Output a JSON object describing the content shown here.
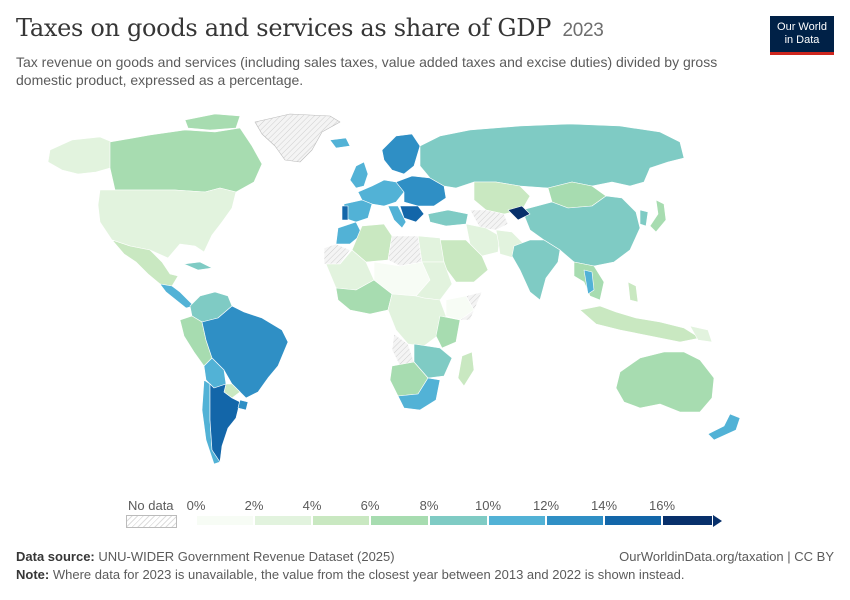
{
  "header": {
    "title": "Taxes on goods and services as share of GDP",
    "year": "2023",
    "subtitle": "Tax revenue on goods and services (including sales taxes, value added taxes and excise duties) divided by gross domestic product, expressed as a percentage.",
    "logo_line1": "Our World",
    "logo_line2": "in Data"
  },
  "legend": {
    "no_data_label": "No data",
    "ticks": [
      "0%",
      "2%",
      "4%",
      "6%",
      "8%",
      "10%",
      "12%",
      "14%",
      "16%"
    ],
    "colors": [
      "#f7fcf5",
      "#e2f3de",
      "#c9e8c1",
      "#a7dcb0",
      "#7fcbc4",
      "#52b2d6",
      "#2f8fc5",
      "#1366a9",
      "#08306b"
    ],
    "no_data_color": "#e8e8e8"
  },
  "footer": {
    "source_label": "Data source:",
    "source_text": "UNU-WIDER Government Revenue Dataset (2025)",
    "url_text": "OurWorldinData.org/taxation | CC BY",
    "note_label": "Note:",
    "note_text": "Where data for 2023 is unavailable, the value from the closest year between 2013 and 2022 is shown instead."
  }
}
